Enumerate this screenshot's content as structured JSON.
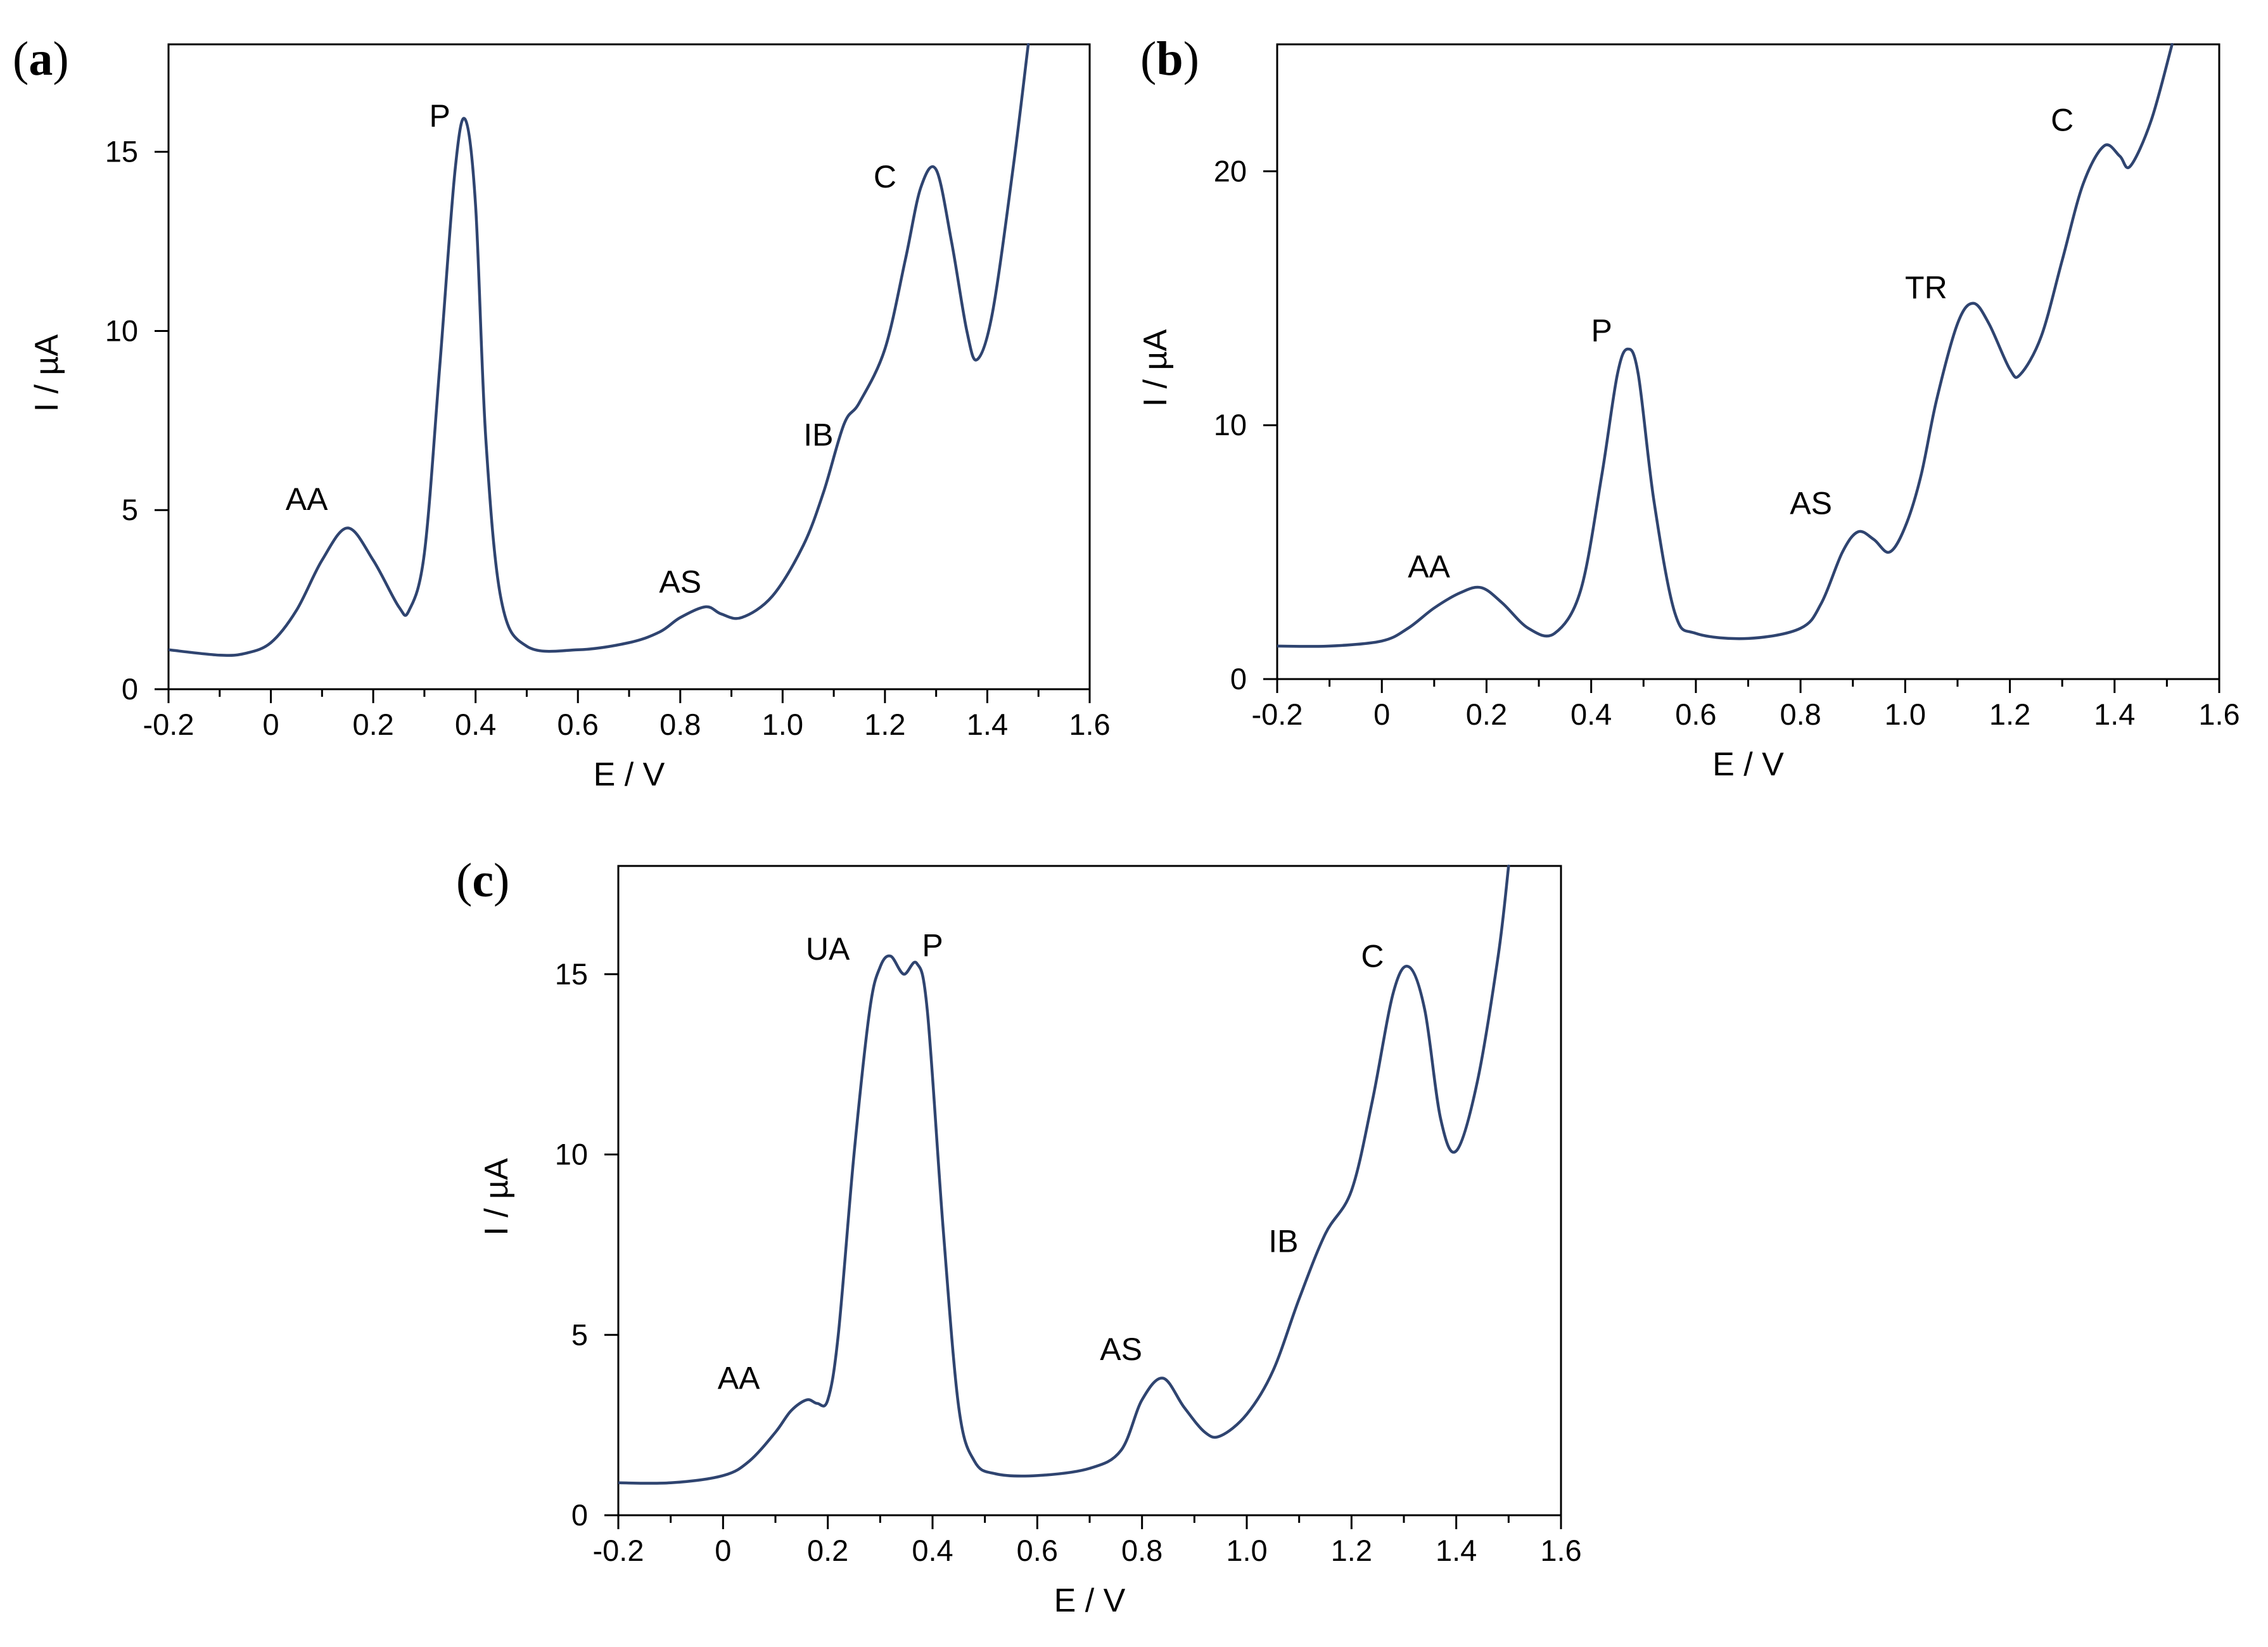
{
  "figure": {
    "line_color": "#2F4470"
  },
  "chart_data": [
    {
      "id": "a",
      "panel_label": "a",
      "type": "line",
      "xlabel": "E / V",
      "ylabel": "I / µA",
      "xlim": [
        -0.2,
        1.6
      ],
      "ylim": [
        0,
        18
      ],
      "xticks": [
        -0.2,
        0,
        0.2,
        0.4,
        0.6,
        0.8,
        1.0,
        1.2,
        1.4,
        1.6
      ],
      "xtick_labels": [
        "-0.2",
        "0",
        "0.2",
        "0.4",
        "0.6",
        "0.8",
        "1.0",
        "1.2",
        "1.4",
        "1.6"
      ],
      "yticks": [
        0,
        5,
        10,
        15
      ],
      "ytick_labels": [
        "0",
        "5",
        "10",
        "15"
      ],
      "x": [
        -0.2,
        -0.1,
        -0.05,
        0.0,
        0.05,
        0.1,
        0.15,
        0.2,
        0.25,
        0.27,
        0.3,
        0.33,
        0.36,
        0.38,
        0.4,
        0.42,
        0.45,
        0.5,
        0.6,
        0.7,
        0.76,
        0.8,
        0.85,
        0.88,
        0.92,
        0.98,
        1.04,
        1.08,
        1.12,
        1.15,
        1.2,
        1.24,
        1.27,
        1.3,
        1.33,
        1.36,
        1.38,
        1.41,
        1.45,
        1.48
      ],
      "y": [
        1.1,
        0.95,
        1.0,
        1.3,
        2.2,
        3.6,
        4.5,
        3.6,
        2.3,
        2.2,
        3.8,
        9.0,
        14.5,
        15.9,
        13.5,
        7.0,
        2.5,
        1.2,
        1.1,
        1.3,
        1.6,
        2.0,
        2.3,
        2.1,
        2.0,
        2.6,
        4.0,
        5.5,
        7.4,
        8.0,
        9.5,
        12.0,
        14.0,
        14.5,
        12.5,
        10.0,
        9.2,
        10.5,
        14.5,
        18.0
      ],
      "annotations": [
        {
          "text": "AA",
          "x": 0.07,
          "y": 5.0
        },
        {
          "text": "P",
          "x": 0.33,
          "y": 15.7
        },
        {
          "text": "AS",
          "x": 0.8,
          "y": 2.7
        },
        {
          "text": "IB",
          "x": 1.07,
          "y": 6.8
        },
        {
          "text": "C",
          "x": 1.2,
          "y": 14.0
        }
      ]
    },
    {
      "id": "b",
      "panel_label": "b",
      "type": "line",
      "xlabel": "E / V",
      "ylabel": "I / µA",
      "xlim": [
        -0.2,
        1.6
      ],
      "ylim": [
        0,
        25
      ],
      "xticks": [
        -0.2,
        0,
        0.2,
        0.4,
        0.6,
        0.8,
        1.0,
        1.2,
        1.4,
        1.6
      ],
      "xtick_labels": [
        "-0.2",
        "0",
        "0.2",
        "0.4",
        "0.6",
        "0.8",
        "1.0",
        "1.2",
        "1.4",
        "1.6"
      ],
      "yticks": [
        0,
        10,
        20
      ],
      "ytick_labels": [
        "0",
        "10",
        "20"
      ],
      "x": [
        -0.2,
        -0.1,
        0.0,
        0.05,
        0.1,
        0.15,
        0.19,
        0.23,
        0.28,
        0.33,
        0.38,
        0.42,
        0.45,
        0.47,
        0.49,
        0.52,
        0.56,
        0.6,
        0.7,
        0.8,
        0.84,
        0.88,
        0.91,
        0.94,
        0.97,
        1.0,
        1.03,
        1.06,
        1.1,
        1.13,
        1.16,
        1.2,
        1.22,
        1.26,
        1.3,
        1.34,
        1.38,
        1.41,
        1.43,
        1.47,
        1.51
      ],
      "y": [
        1.3,
        1.3,
        1.5,
        2.0,
        2.8,
        3.4,
        3.6,
        3.0,
        2.0,
        1.8,
        3.5,
        8.0,
        12.0,
        13.0,
        12.0,
        7.0,
        2.6,
        1.8,
        1.6,
        2.0,
        3.0,
        5.0,
        5.8,
        5.5,
        5.0,
        6.0,
        8.0,
        11.0,
        14.0,
        14.8,
        14.0,
        12.2,
        12.0,
        13.5,
        16.5,
        19.5,
        21.0,
        20.6,
        20.2,
        22.0,
        25.0
      ],
      "annotations": [
        {
          "text": "AA",
          "x": 0.09,
          "y": 4.0
        },
        {
          "text": "P",
          "x": 0.42,
          "y": 13.3
        },
        {
          "text": "AS",
          "x": 0.82,
          "y": 6.5
        },
        {
          "text": "TR",
          "x": 1.04,
          "y": 15.0
        },
        {
          "text": "C",
          "x": 1.3,
          "y": 21.6
        }
      ]
    },
    {
      "id": "c",
      "panel_label": "c",
      "type": "line",
      "xlabel": "E / V",
      "ylabel": "I / µA",
      "xlim": [
        -0.2,
        1.6
      ],
      "ylim": [
        0,
        18
      ],
      "xticks": [
        -0.2,
        0,
        0.2,
        0.4,
        0.6,
        0.8,
        1.0,
        1.2,
        1.4,
        1.6
      ],
      "xtick_labels": [
        "-0.2",
        "0",
        "0.2",
        "0.4",
        "0.6",
        "0.8",
        "1.0",
        "1.2",
        "1.4",
        "1.6"
      ],
      "yticks": [
        0,
        5,
        10,
        15
      ],
      "ytick_labels": [
        "0",
        "5",
        "10",
        "15"
      ],
      "x": [
        -0.2,
        -0.1,
        0.0,
        0.05,
        0.1,
        0.13,
        0.16,
        0.18,
        0.2,
        0.22,
        0.25,
        0.28,
        0.3,
        0.32,
        0.345,
        0.37,
        0.39,
        0.42,
        0.45,
        0.48,
        0.52,
        0.6,
        0.7,
        0.76,
        0.8,
        0.84,
        0.88,
        0.92,
        0.95,
        1.0,
        1.05,
        1.1,
        1.15,
        1.2,
        1.24,
        1.28,
        1.31,
        1.34,
        1.37,
        1.4,
        1.44,
        1.48,
        1.5
      ],
      "y": [
        0.9,
        0.9,
        1.1,
        1.5,
        2.3,
        2.9,
        3.2,
        3.1,
        3.2,
        5.0,
        10.0,
        14.0,
        15.2,
        15.5,
        15.0,
        15.3,
        14.0,
        8.0,
        3.0,
        1.5,
        1.15,
        1.1,
        1.3,
        1.8,
        3.2,
        3.8,
        3.0,
        2.3,
        2.2,
        2.8,
        4.0,
        6.0,
        7.8,
        9.0,
        11.5,
        14.5,
        15.2,
        14.0,
        11.0,
        10.1,
        12.0,
        15.5,
        18.0
      ],
      "annotations": [
        {
          "text": "AA",
          "x": 0.03,
          "y": 3.5
        },
        {
          "text": "UA",
          "x": 0.2,
          "y": 15.4
        },
        {
          "text": "P",
          "x": 0.4,
          "y": 15.5
        },
        {
          "text": "AS",
          "x": 0.76,
          "y": 4.3
        },
        {
          "text": "IB",
          "x": 1.07,
          "y": 7.3
        },
        {
          "text": "C",
          "x": 1.24,
          "y": 15.2
        }
      ]
    }
  ]
}
